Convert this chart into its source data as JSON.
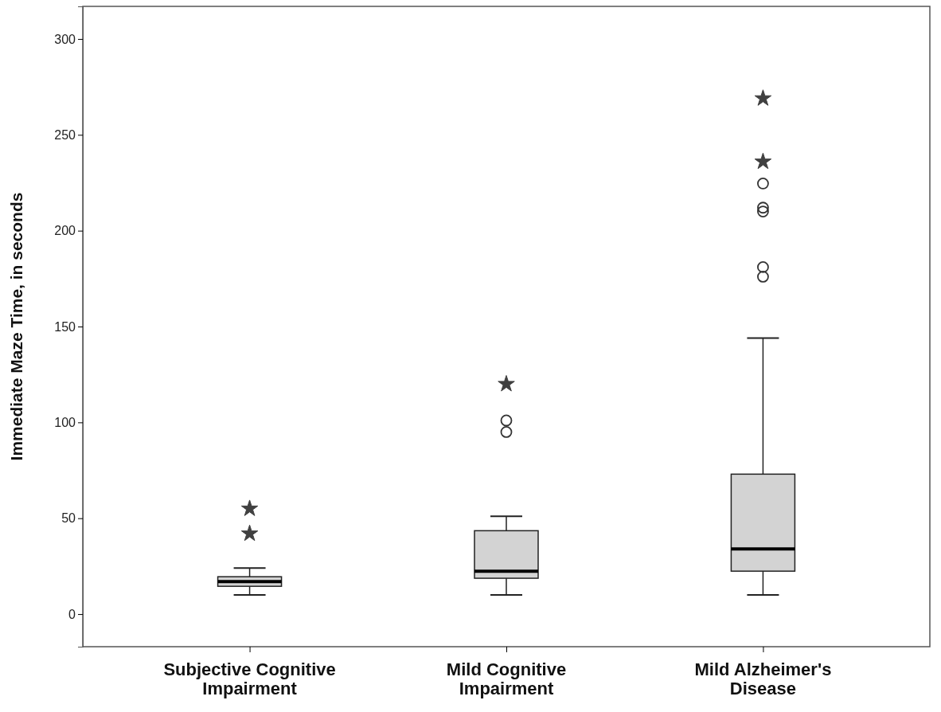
{
  "chart_data": {
    "type": "box",
    "ylabel": "Immediate Maze Time, in seconds",
    "categories": [
      "Subjective Cognitive Impairment",
      "Mild Cognitive Impairment",
      "Mild Alzheimer's Disease"
    ],
    "ylim": [
      -17,
      317
    ],
    "yticks": [
      0,
      50,
      100,
      150,
      200,
      250,
      300
    ],
    "grid": false,
    "series": [
      {
        "type": "box",
        "color": "#d3d3d3",
        "boxes": [
          {
            "low": 10,
            "q1": 14.5,
            "median": 17,
            "q3": 19.5,
            "high": 24
          },
          {
            "low": 10,
            "q1": 18.7,
            "median": 22.4,
            "q3": 43.5,
            "high": 51,
            "outliers": [
              101,
              95
            ]
          },
          {
            "low": 10,
            "q1": 22.4,
            "median": 34,
            "q3": 73,
            "high": 144,
            "outliers": [
              224.6,
              212,
              210,
              181,
              176
            ]
          }
        ]
      },
      {
        "type": "scatter",
        "marker": "star",
        "color": "#404040",
        "x": [
          "Subjective Cognitive Impairment",
          "Subjective Cognitive Impairment",
          "Mild Cognitive Impairment",
          "Mild Alzheimer's Disease",
          "Mild Alzheimer's Disease"
        ],
        "values": [
          55,
          42,
          120,
          269,
          236
        ]
      }
    ]
  }
}
